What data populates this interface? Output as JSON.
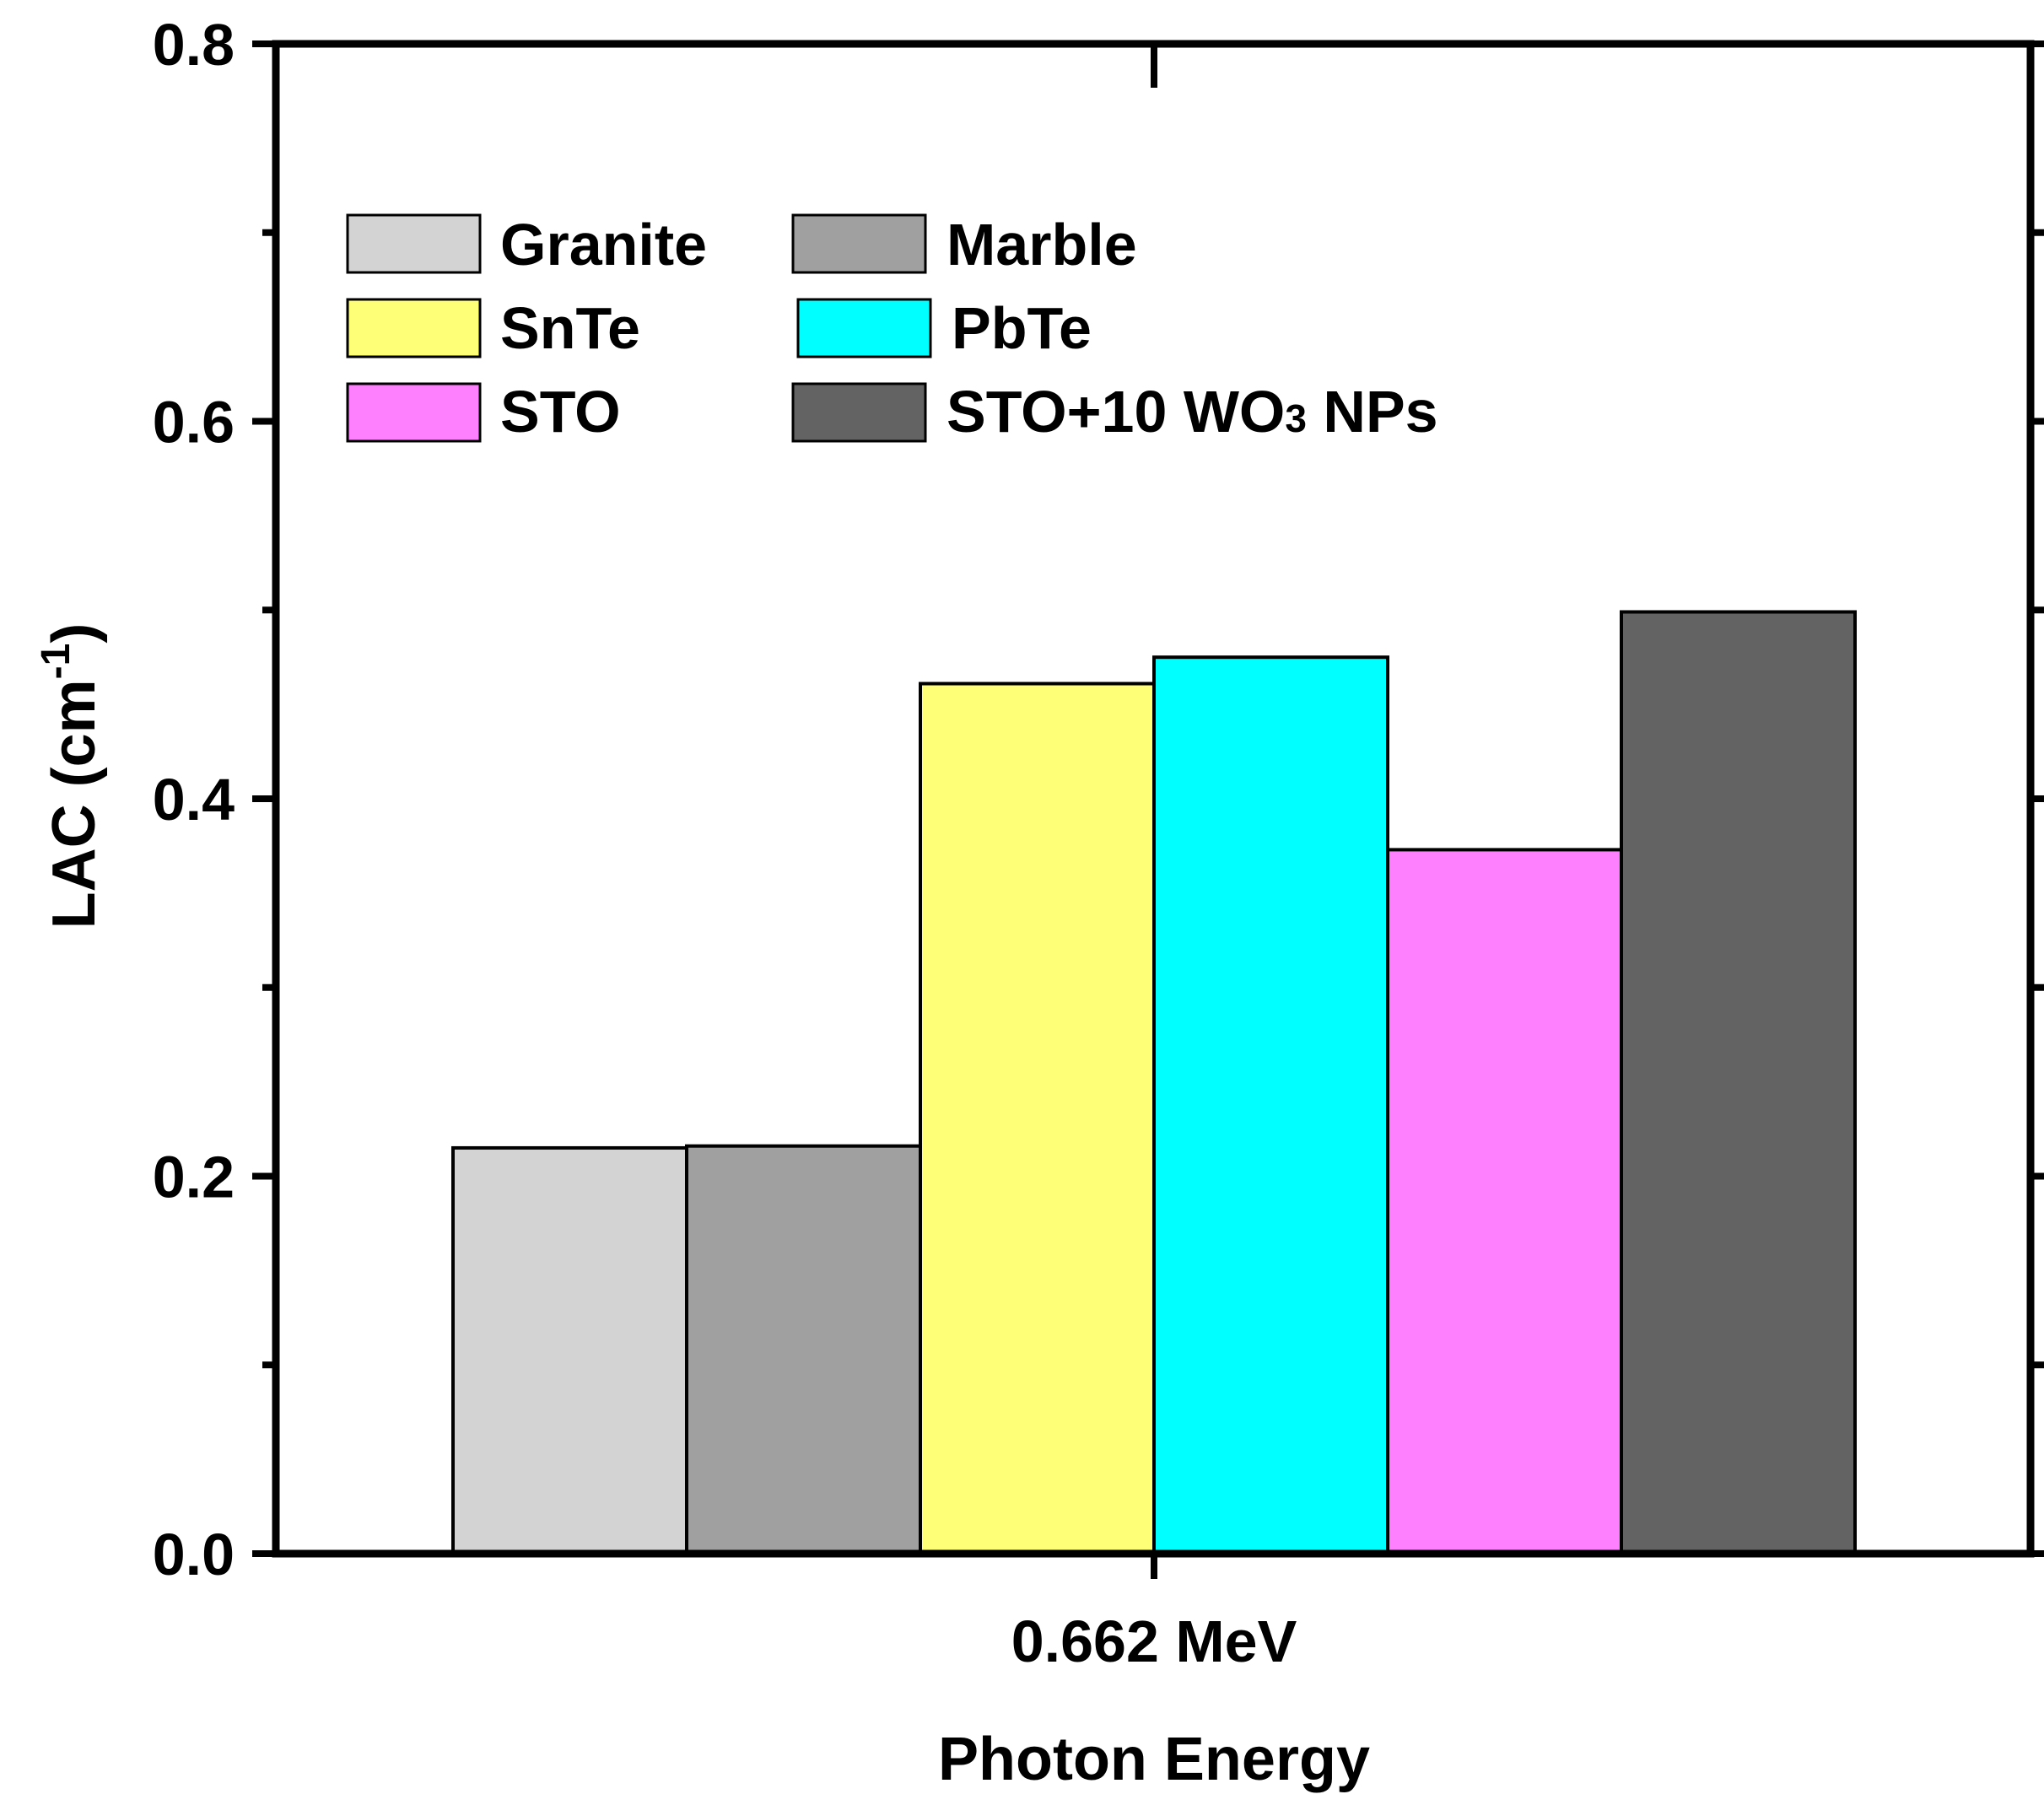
{
  "chart_data": {
    "type": "bar",
    "categories": [
      "0.662 MeV"
    ],
    "series": [
      {
        "name": "Granite",
        "values": [
          0.215
        ],
        "color": "#d3d3d3"
      },
      {
        "name": "Marble",
        "values": [
          0.216
        ],
        "color": "#a0a0a0"
      },
      {
        "name": "SnTe",
        "values": [
          0.461
        ],
        "color": "#ffff77"
      },
      {
        "name": "PbTe",
        "values": [
          0.475
        ],
        "color": "#00ffff"
      },
      {
        "name": "STO",
        "values": [
          0.373
        ],
        "color": "#ff80ff"
      },
      {
        "name": "STO+10 WO3 NPs",
        "values": [
          0.499
        ],
        "color": "#636363"
      }
    ],
    "legend_labels": {
      "granite": "Granite",
      "marble": "Marble",
      "snte": "SnTe",
      "pbte": "PbTe",
      "sto": "STO",
      "sto_wo3_prefix": "STO+10 WO",
      "sto_wo3_sub": "3",
      "sto_wo3_suffix": " NPs"
    },
    "xlabel": "Photon Energy",
    "ylabel": {
      "main": "LAC (cm",
      "sup": "-1",
      "close": ")"
    },
    "ylim": [
      0,
      0.8
    ],
    "yticks": [
      "0.0",
      "0.2",
      "0.4",
      "0.6",
      "0.8"
    ],
    "legend_position": "top-left",
    "grid": false
  }
}
